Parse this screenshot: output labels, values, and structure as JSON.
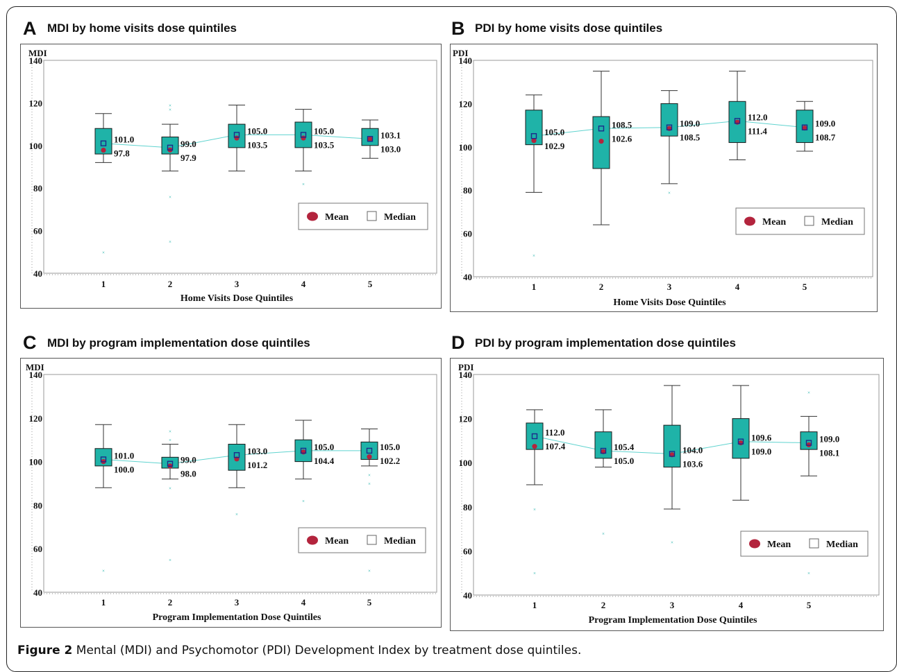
{
  "colors": {
    "box_fill": "#1fb3a8",
    "box_stroke": "#1a1a1a",
    "mean": "#b3243d",
    "median_stroke": "#1c2a8a",
    "line": "#5fd3cf",
    "outlier": "#22b2ab"
  },
  "caption": {
    "label": "Figure 2",
    "text": "Mental (MDI) and Psychomotor (PDI) Development Index by treatment dose quintiles."
  },
  "chart_data": [
    {
      "type": "box",
      "letter": "A",
      "title": "MDI by home visits dose quintiles",
      "ylabel": "MDI",
      "xlabel": "Home Visits Dose Quintiles",
      "ylim": [
        40,
        140
      ],
      "yticks": [
        40,
        60,
        80,
        100,
        120,
        140
      ],
      "categories": [
        "1",
        "2",
        "3",
        "4",
        "5"
      ],
      "legend": {
        "mean": "Mean",
        "median": "Median",
        "position": "bottom-right"
      },
      "boxes": [
        {
          "min": 92,
          "q1": 96,
          "median": 101.0,
          "q3": 108,
          "max": 115,
          "mean": 97.8,
          "outliers": [
            50
          ]
        },
        {
          "min": 88,
          "q1": 96,
          "median": 99.0,
          "q3": 104,
          "max": 110,
          "mean": 97.9,
          "outliers": [
            119,
            117,
            76,
            55
          ]
        },
        {
          "min": 88,
          "q1": 99,
          "median": 105.0,
          "q3": 110,
          "max": 119,
          "mean": 103.5,
          "outliers": []
        },
        {
          "min": 88,
          "q1": 99,
          "median": 105.0,
          "q3": 111,
          "max": 117,
          "mean": 103.5,
          "outliers": [
            82
          ]
        },
        {
          "min": 94,
          "q1": 100,
          "median": 103.1,
          "q3": 108,
          "max": 112,
          "mean": 103.0,
          "outliers": []
        }
      ],
      "labels": [
        {
          "top": "101.0",
          "bottom": "97.8"
        },
        {
          "top": "99.0",
          "bottom": "97.9"
        },
        {
          "top": "105.0",
          "bottom": "103.5"
        },
        {
          "top": "105.0",
          "bottom": "103.5"
        },
        {
          "top": "103.1",
          "bottom": "103.0"
        }
      ]
    },
    {
      "type": "box",
      "letter": "B",
      "title": "PDI by home visits dose quintiles",
      "ylabel": "PDI",
      "xlabel": "Home Visits Dose Quintiles",
      "ylim": [
        40,
        140
      ],
      "yticks": [
        40,
        60,
        80,
        100,
        120,
        140
      ],
      "categories": [
        "1",
        "2",
        "3",
        "4",
        "5"
      ],
      "legend": {
        "mean": "Mean",
        "median": "Median",
        "position": "bottom-right"
      },
      "boxes": [
        {
          "min": 79,
          "q1": 101,
          "median": 105.0,
          "q3": 117,
          "max": 124,
          "mean": 102.9,
          "outliers": [
            50
          ]
        },
        {
          "min": 64,
          "q1": 90,
          "median": 108.5,
          "q3": 114,
          "max": 135,
          "mean": 102.6,
          "outliers": []
        },
        {
          "min": 83,
          "q1": 105,
          "median": 109.0,
          "q3": 120,
          "max": 126,
          "mean": 108.5,
          "outliers": [
            79
          ]
        },
        {
          "min": 94,
          "q1": 102,
          "median": 112.0,
          "q3": 121,
          "max": 135,
          "mean": 111.4,
          "outliers": []
        },
        {
          "min": 98,
          "q1": 102,
          "median": 109.0,
          "q3": 117,
          "max": 121,
          "mean": 108.7,
          "outliers": []
        }
      ],
      "labels": [
        {
          "top": "105.0",
          "bottom": "102.9"
        },
        {
          "top": "108.5",
          "bottom": "102.6"
        },
        {
          "top": "109.0",
          "bottom": "108.5"
        },
        {
          "top": "112.0",
          "bottom": "111.4"
        },
        {
          "top": "109.0",
          "bottom": "108.7"
        }
      ]
    },
    {
      "type": "box",
      "letter": "C",
      "title": "MDI by program implementation dose quintiles",
      "ylabel": "MDI",
      "xlabel": "Program Implementation Dose Quintiles",
      "ylim": [
        40,
        140
      ],
      "yticks": [
        40,
        60,
        80,
        100,
        120,
        140
      ],
      "categories": [
        "1",
        "2",
        "3",
        "4",
        "5"
      ],
      "legend": {
        "mean": "Mean",
        "median": "Median",
        "position": "bottom-right"
      },
      "boxes": [
        {
          "min": 88,
          "q1": 98,
          "median": 101.0,
          "q3": 106,
          "max": 117,
          "mean": 100.0,
          "outliers": [
            50
          ]
        },
        {
          "min": 92,
          "q1": 97,
          "median": 99.0,
          "q3": 102,
          "max": 108,
          "mean": 98.0,
          "outliers": [
            114,
            110,
            88,
            55
          ]
        },
        {
          "min": 88,
          "q1": 96,
          "median": 103.0,
          "q3": 108,
          "max": 117,
          "mean": 101.2,
          "outliers": [
            76
          ]
        },
        {
          "min": 92,
          "q1": 100,
          "median": 105.0,
          "q3": 110,
          "max": 119,
          "mean": 104.4,
          "outliers": [
            82
          ]
        },
        {
          "min": 98,
          "q1": 101,
          "median": 105.0,
          "q3": 109,
          "max": 115,
          "mean": 102.2,
          "outliers": [
            94,
            90,
            50
          ]
        }
      ],
      "labels": [
        {
          "top": "101.0",
          "bottom": "100.0"
        },
        {
          "top": "99.0",
          "bottom": "98.0"
        },
        {
          "top": "103.0",
          "bottom": "101.2"
        },
        {
          "top": "105.0",
          "bottom": "104.4"
        },
        {
          "top": "105.0",
          "bottom": "102.2"
        }
      ]
    },
    {
      "type": "box",
      "letter": "D",
      "title": "PDI by program implementation dose quintiles",
      "ylabel": "PDI",
      "xlabel": "Program Implementation Dose Quintiles",
      "ylim": [
        40,
        140
      ],
      "yticks": [
        40,
        60,
        80,
        100,
        120,
        140
      ],
      "categories": [
        "1",
        "2",
        "3",
        "4",
        "5"
      ],
      "legend": {
        "mean": "Mean",
        "median": "Median",
        "position": "bottom-right"
      },
      "boxes": [
        {
          "min": 90,
          "q1": 106,
          "median": 112.0,
          "q3": 118,
          "max": 124,
          "mean": 107.4,
          "outliers": [
            79,
            50
          ]
        },
        {
          "min": 98,
          "q1": 102,
          "median": 105.4,
          "q3": 114,
          "max": 124,
          "mean": 105.0,
          "outliers": [
            68
          ]
        },
        {
          "min": 79,
          "q1": 98,
          "median": 104.0,
          "q3": 117,
          "max": 135,
          "mean": 103.6,
          "outliers": [
            64
          ]
        },
        {
          "min": 83,
          "q1": 102,
          "median": 109.6,
          "q3": 120,
          "max": 135,
          "mean": 109.0,
          "outliers": []
        },
        {
          "min": 94,
          "q1": 106,
          "median": 109.0,
          "q3": 114,
          "max": 121,
          "mean": 108.1,
          "outliers": [
            132,
            50
          ]
        }
      ],
      "labels": [
        {
          "top": "112.0",
          "bottom": "107.4"
        },
        {
          "top": "105.4",
          "bottom": "105.0"
        },
        {
          "top": "104.0",
          "bottom": "103.6"
        },
        {
          "top": "109.6",
          "bottom": "109.0"
        },
        {
          "top": "109.0",
          "bottom": "108.1"
        }
      ]
    }
  ]
}
